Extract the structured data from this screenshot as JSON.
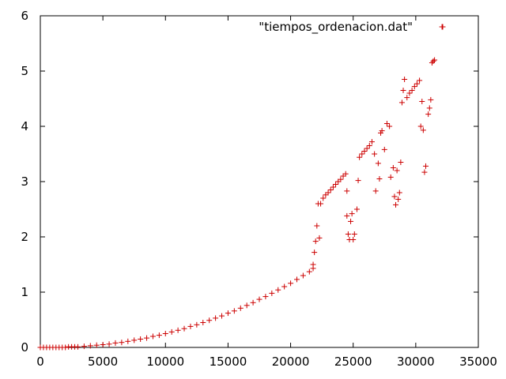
{
  "chart_data": {
    "type": "scatter",
    "marker": "plus",
    "grid": false,
    "legend_position": "top-right",
    "title": "",
    "xlabel": "",
    "ylabel": "",
    "xlim": [
      0,
      35000
    ],
    "ylim": [
      0,
      6
    ],
    "x_ticks": [
      "0",
      "5000",
      "10000",
      "15000",
      "20000",
      "25000",
      "30000",
      "35000"
    ],
    "y_ticks": [
      "0",
      "1",
      "2",
      "3",
      "4",
      "5",
      "6"
    ],
    "series": [
      {
        "name": "\"tiempos_ordenacion.dat\"",
        "color": "#cc0000",
        "points": [
          [
            0,
            0.0
          ],
          [
            250,
            0.0
          ],
          [
            500,
            0.0
          ],
          [
            750,
            0.0
          ],
          [
            1000,
            0.0
          ],
          [
            1250,
            0.0
          ],
          [
            1500,
            0.0
          ],
          [
            1750,
            0.0
          ],
          [
            2000,
            0.0
          ],
          [
            2250,
            0.01
          ],
          [
            2500,
            0.01
          ],
          [
            2750,
            0.01
          ],
          [
            3000,
            0.01
          ],
          [
            3500,
            0.02
          ],
          [
            4000,
            0.03
          ],
          [
            4500,
            0.04
          ],
          [
            5000,
            0.05
          ],
          [
            5500,
            0.06
          ],
          [
            6000,
            0.08
          ],
          [
            6500,
            0.09
          ],
          [
            7000,
            0.11
          ],
          [
            7500,
            0.13
          ],
          [
            8000,
            0.15
          ],
          [
            8500,
            0.17
          ],
          [
            9000,
            0.2
          ],
          [
            9500,
            0.22
          ],
          [
            10000,
            0.25
          ],
          [
            10500,
            0.28
          ],
          [
            11000,
            0.31
          ],
          [
            11500,
            0.34
          ],
          [
            12000,
            0.38
          ],
          [
            12500,
            0.41
          ],
          [
            13000,
            0.45
          ],
          [
            13500,
            0.49
          ],
          [
            14000,
            0.53
          ],
          [
            14500,
            0.57
          ],
          [
            15000,
            0.62
          ],
          [
            15500,
            0.66
          ],
          [
            16000,
            0.71
          ],
          [
            16500,
            0.76
          ],
          [
            17000,
            0.81
          ],
          [
            17500,
            0.87
          ],
          [
            18000,
            0.92
          ],
          [
            18500,
            0.98
          ],
          [
            19000,
            1.04
          ],
          [
            19500,
            1.1
          ],
          [
            20000,
            1.16
          ],
          [
            20500,
            1.23
          ],
          [
            21000,
            1.3
          ],
          [
            21500,
            1.37
          ],
          [
            21800,
            1.43
          ],
          [
            21800,
            1.5
          ],
          [
            21900,
            1.72
          ],
          [
            22000,
            1.92
          ],
          [
            22100,
            2.2
          ],
          [
            22200,
            2.6
          ],
          [
            22300,
            1.98
          ],
          [
            22400,
            2.6
          ],
          [
            22600,
            2.7
          ],
          [
            22800,
            2.76
          ],
          [
            23000,
            2.8
          ],
          [
            23200,
            2.85
          ],
          [
            23400,
            2.9
          ],
          [
            23600,
            2.95
          ],
          [
            23800,
            3.0
          ],
          [
            24000,
            3.04
          ],
          [
            24200,
            3.1
          ],
          [
            24400,
            3.14
          ],
          [
            24500,
            2.83
          ],
          [
            24500,
            2.38
          ],
          [
            24600,
            2.05
          ],
          [
            24700,
            1.95
          ],
          [
            24800,
            2.28
          ],
          [
            24900,
            2.42
          ],
          [
            25000,
            1.95
          ],
          [
            25100,
            2.05
          ],
          [
            25300,
            2.5
          ],
          [
            25400,
            3.02
          ],
          [
            25500,
            3.44
          ],
          [
            25700,
            3.5
          ],
          [
            25900,
            3.55
          ],
          [
            26100,
            3.6
          ],
          [
            26300,
            3.65
          ],
          [
            26500,
            3.72
          ],
          [
            26700,
            3.5
          ],
          [
            26800,
            2.83
          ],
          [
            27000,
            3.33
          ],
          [
            27100,
            3.05
          ],
          [
            27200,
            3.88
          ],
          [
            27300,
            3.92
          ],
          [
            27500,
            3.58
          ],
          [
            27700,
            4.05
          ],
          [
            27900,
            4.0
          ],
          [
            28000,
            3.08
          ],
          [
            28200,
            3.25
          ],
          [
            28300,
            2.73
          ],
          [
            28400,
            2.58
          ],
          [
            28500,
            3.2
          ],
          [
            28600,
            2.68
          ],
          [
            28700,
            2.8
          ],
          [
            28800,
            3.35
          ],
          [
            28900,
            4.43
          ],
          [
            29000,
            4.65
          ],
          [
            29100,
            4.85
          ],
          [
            29300,
            4.52
          ],
          [
            29500,
            4.6
          ],
          [
            29700,
            4.65
          ],
          [
            29900,
            4.72
          ],
          [
            30100,
            4.77
          ],
          [
            30300,
            4.83
          ],
          [
            30400,
            4.0
          ],
          [
            30500,
            4.45
          ],
          [
            30600,
            3.93
          ],
          [
            30700,
            3.17
          ],
          [
            30800,
            3.28
          ],
          [
            31000,
            4.22
          ],
          [
            31100,
            4.33
          ],
          [
            31200,
            4.48
          ],
          [
            31300,
            5.15
          ],
          [
            31400,
            5.18
          ],
          [
            31500,
            5.2
          ],
          [
            32100,
            5.8
          ]
        ]
      }
    ]
  }
}
